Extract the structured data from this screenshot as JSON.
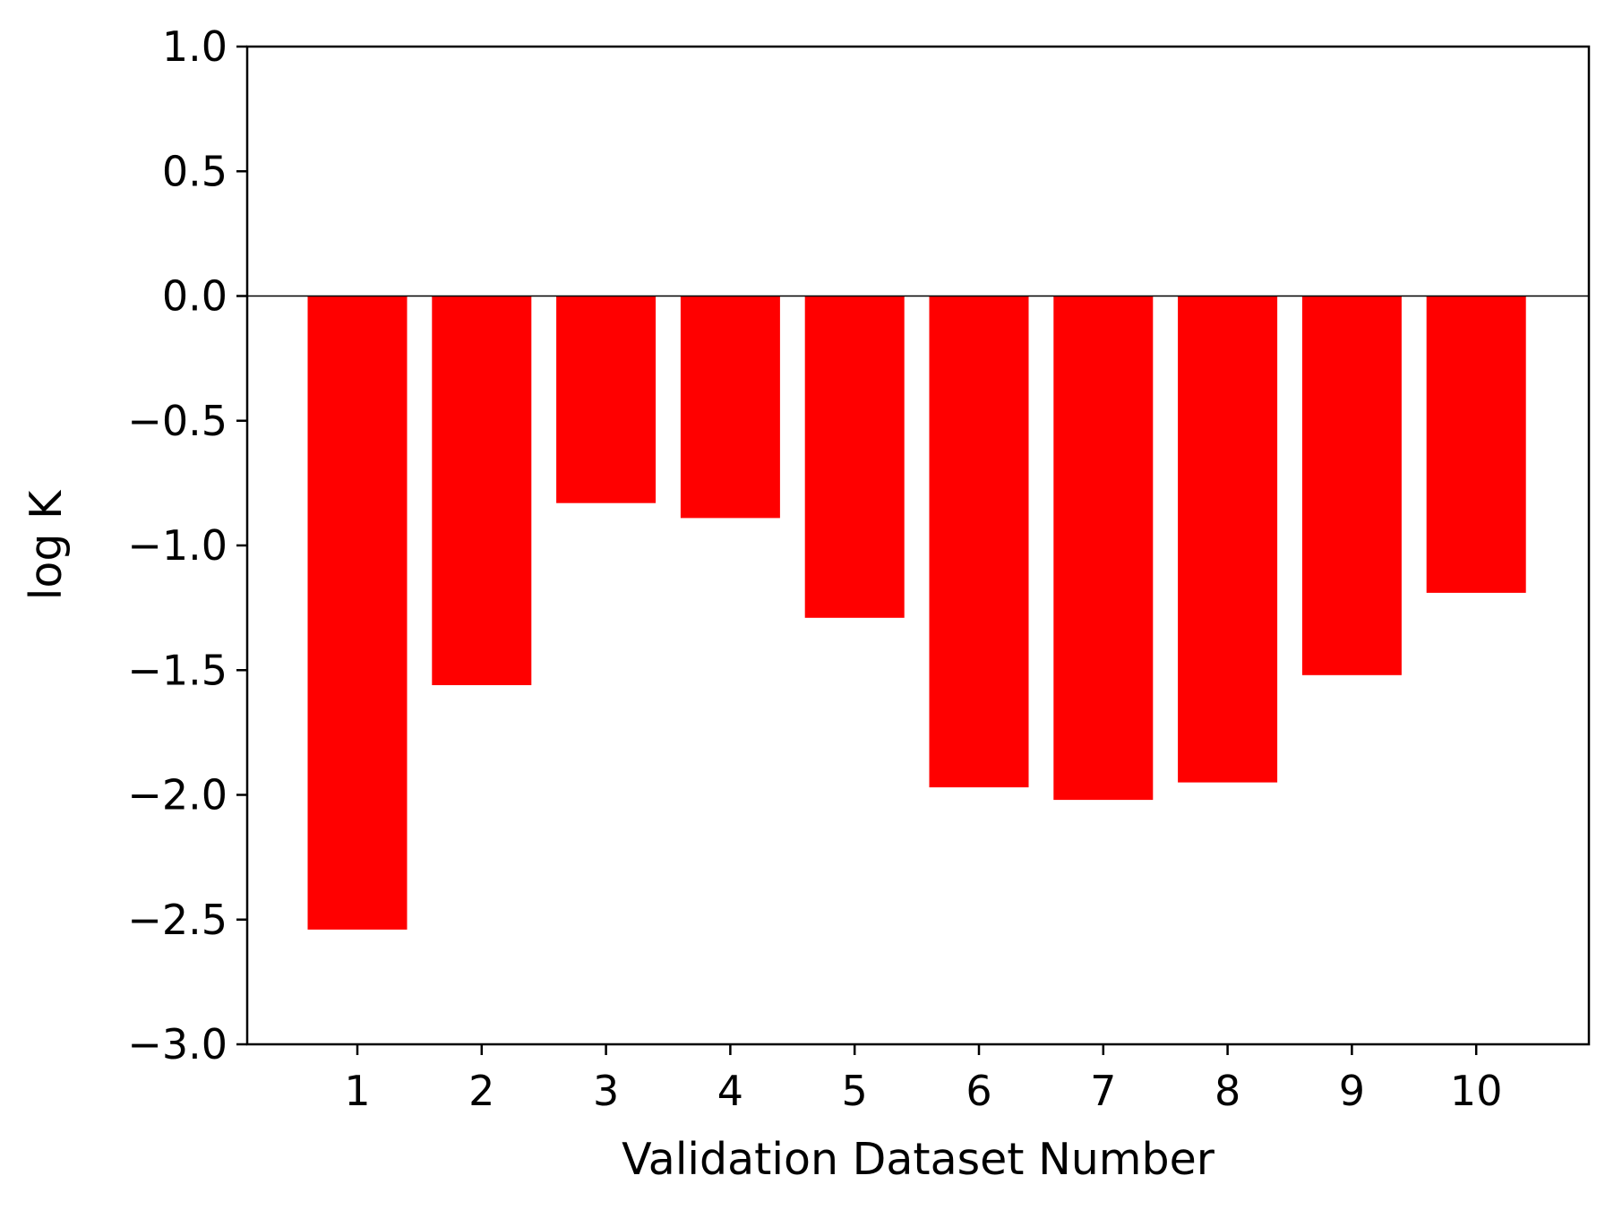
{
  "chart_data": {
    "type": "bar",
    "title": "",
    "xlabel": "Validation Dataset Number",
    "ylabel": "log K",
    "categories": [
      "1",
      "2",
      "3",
      "4",
      "5",
      "6",
      "7",
      "8",
      "9",
      "10"
    ],
    "values": [
      -2.54,
      -1.56,
      -0.83,
      -0.89,
      -1.29,
      -1.97,
      -2.02,
      -1.95,
      -1.52,
      -1.19
    ],
    "ylim": [
      -3.0,
      1.0
    ],
    "yticks": [
      1.0,
      0.5,
      0.0,
      -0.5,
      -1.0,
      -1.5,
      -2.0,
      -2.5,
      -3.0
    ],
    "ytick_labels": [
      "1.0",
      "0.5",
      "0.0",
      "−0.5",
      "−1.0",
      "−1.5",
      "−2.0",
      "−2.5",
      "−3.0"
    ],
    "bar_color": "#ff0000",
    "zero_line": true,
    "grid": false,
    "legend": "none"
  }
}
